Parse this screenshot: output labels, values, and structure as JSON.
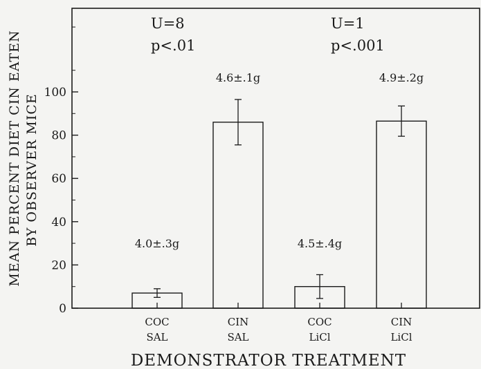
{
  "chart_data": {
    "type": "bar",
    "categories": [
      [
        "COC",
        "SAL"
      ],
      [
        "CIN",
        "SAL"
      ],
      [
        "COC",
        "LiCl"
      ],
      [
        "CIN",
        "LiCl"
      ]
    ],
    "values": [
      7,
      86,
      10,
      86.5
    ],
    "error": [
      2,
      10.5,
      5.5,
      7
    ],
    "data_labels": [
      "4.0±.3g",
      "4.6±.1g",
      "4.5±.4g",
      "4.9±.2g"
    ],
    "annotations": [
      {
        "lines": [
          "U=8",
          "p<.01"
        ],
        "over": [
          0,
          1
        ]
      },
      {
        "lines": [
          "U=1",
          "p<.001"
        ],
        "over": [
          2,
          3
        ]
      }
    ],
    "xlabel": "DEMONSTRATOR TREATMENT",
    "ylabel_lines": [
      "MEAN PERCENT DIET CIN EATEN",
      "BY OBSERVER MICE"
    ],
    "yticks": [
      0,
      20,
      40,
      60,
      80,
      100
    ],
    "ylim": [
      0,
      130
    ],
    "grid": false
  }
}
